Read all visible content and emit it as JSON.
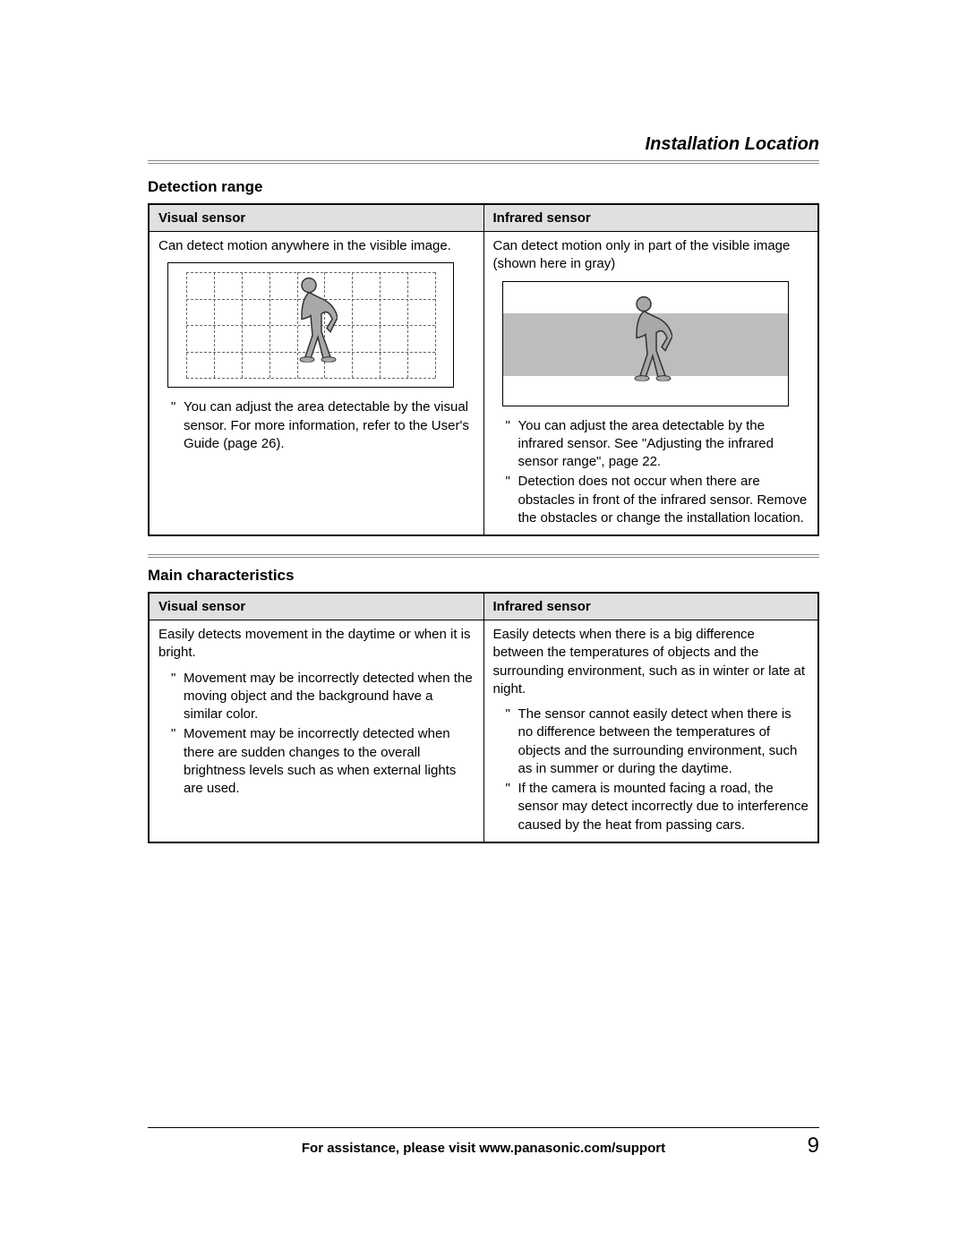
{
  "header": {
    "title": "Installation Location"
  },
  "section1": {
    "heading": "Detection range",
    "col1_header": "Visual sensor",
    "col2_header": "Infrared sensor",
    "col1_intro": "Can detect motion anywhere in the visible image.",
    "col2_intro": "Can detect motion only in part of the visible image (shown here in gray)",
    "col1_bullets": [
      "You can adjust the area detectable by the visual sensor. For more information, refer to the User's Guide (page 26)."
    ],
    "col2_bullets": [
      "You can adjust the area detectable by the infrared sensor. See \"Adjusting the infrared sensor range\", page 22.",
      "Detection does not occur when there are obstacles in front of the infrared sensor. Remove the obstacles or change the installation location."
    ]
  },
  "section2": {
    "heading": "Main characteristics",
    "col1_header": "Visual sensor",
    "col2_header": "Infrared sensor",
    "col1_intro": "Easily detects movement in the daytime or when it is bright.",
    "col1_bullets": [
      "Movement may be incorrectly detected when the moving object and the background have a similar color.",
      "Movement may be incorrectly detected when there are sudden changes to the overall brightness levels such as when external lights are used."
    ],
    "col2_intro": "Easily detects when there is a big difference between the temperatures of objects and the surrounding environment, such as in winter or late at night.",
    "col2_bullets": [
      "The sensor cannot easily detect when there is no difference between the temperatures of objects and the surrounding environment, such as in summer or during the daytime.",
      "If the camera is mounted facing a road, the sensor may detect incorrectly due to interference caused by the heat from passing cars."
    ]
  },
  "footer": {
    "text": "For assistance, please visit www.panasonic.com/support",
    "page": "9"
  },
  "bullet_char": "\"",
  "diagram": {
    "grid_cols": 9,
    "grid_rows": 4,
    "grid_color": "#666666",
    "gray_color": "#bdbdbd",
    "border_color": "#000000"
  }
}
